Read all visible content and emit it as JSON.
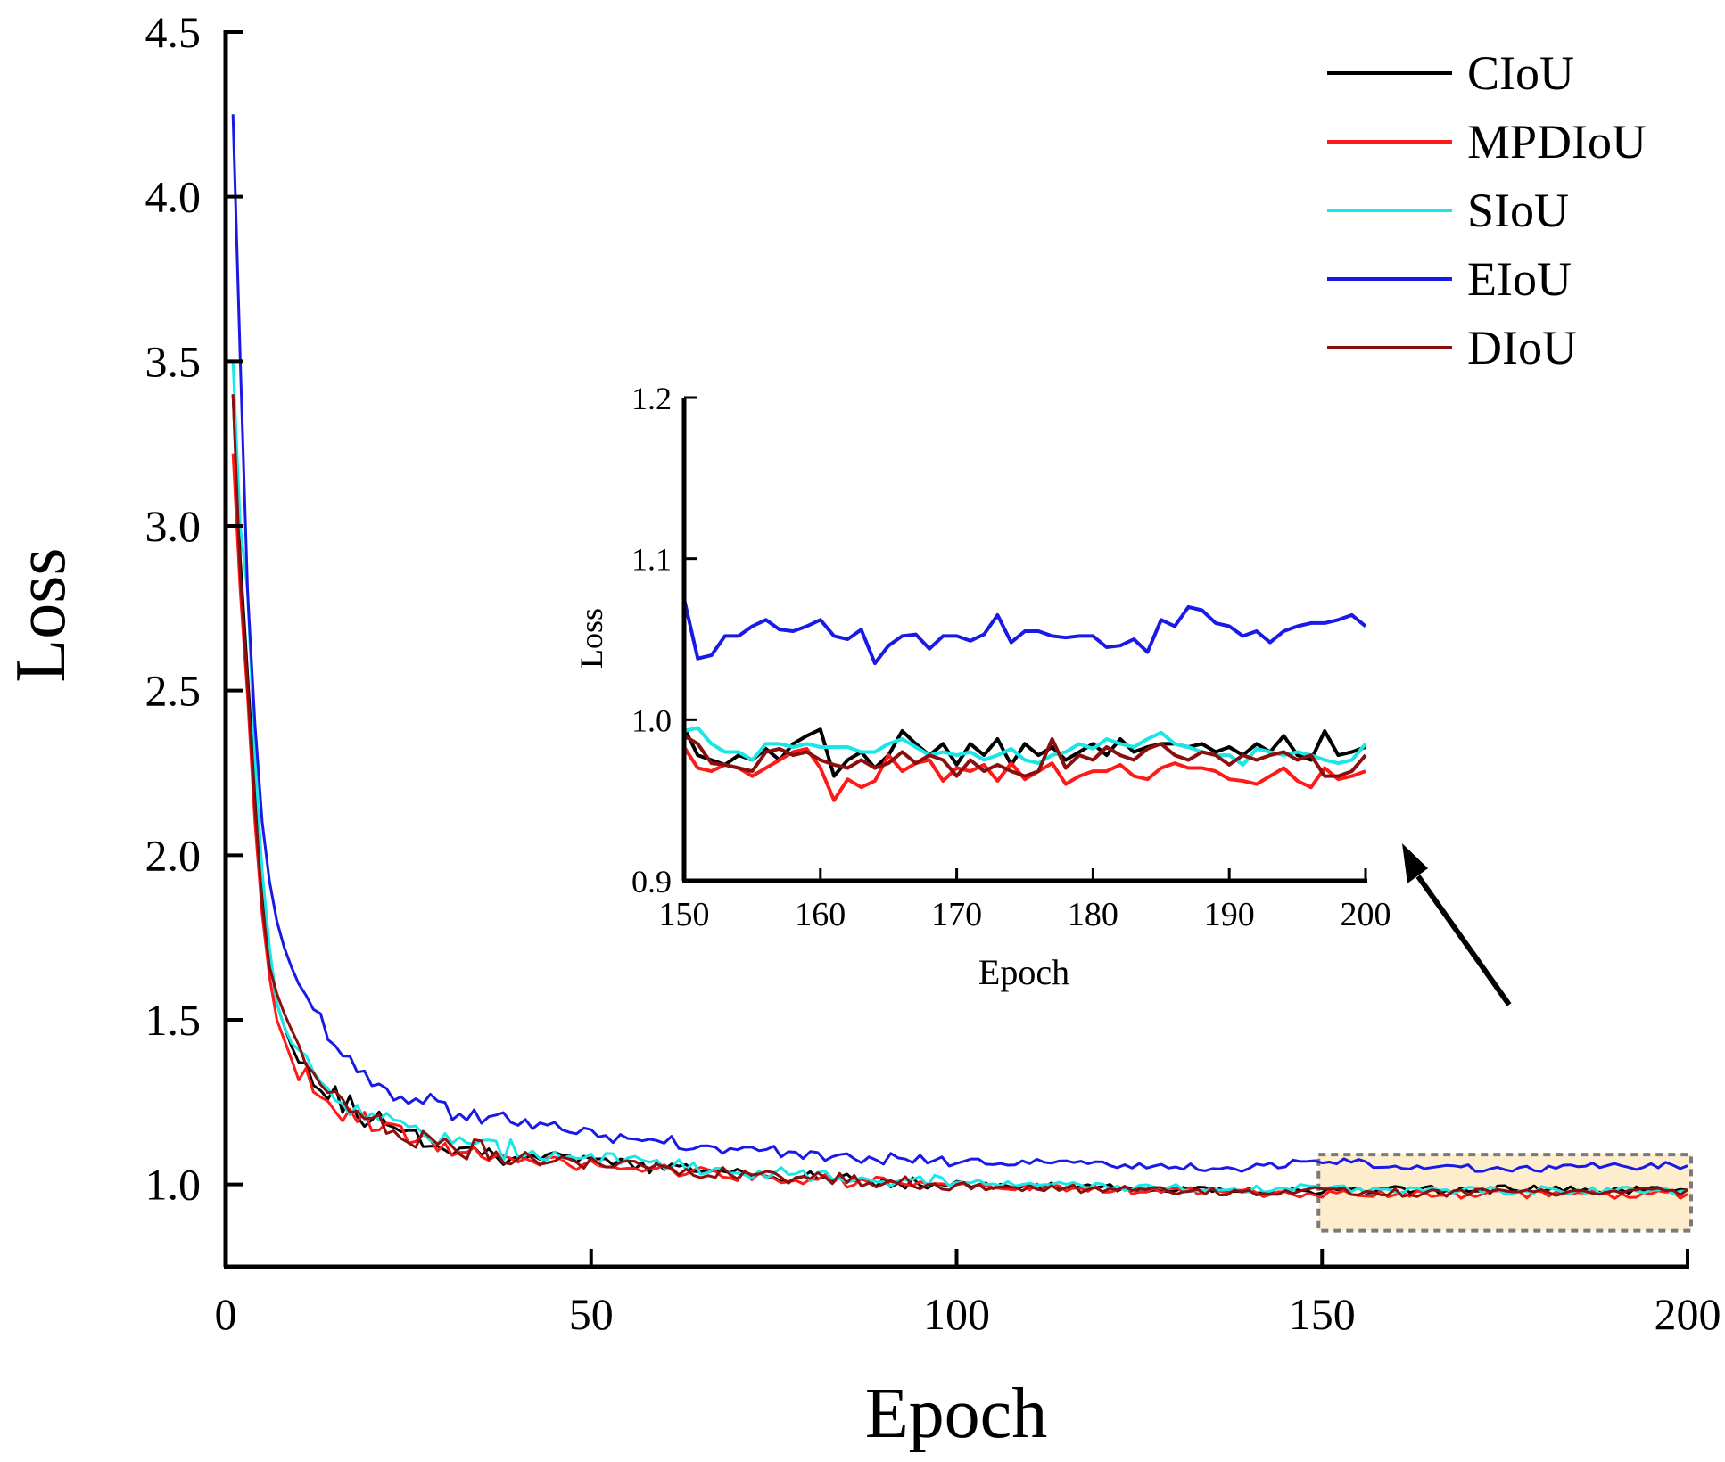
{
  "chart_data": [
    {
      "type": "line",
      "id": "main",
      "title": "",
      "xlabel": "Epoch",
      "ylabel": "Loss",
      "xlim": [
        0,
        200
      ],
      "ylim": [
        0.75,
        4.5
      ],
      "xticks": [
        "0",
        "50",
        "100",
        "150",
        "200"
      ],
      "yticks": [
        "1.0",
        "1.5",
        "2.0",
        "2.5",
        "3.0",
        "3.5",
        "4.0",
        "4.5"
      ],
      "grid": false,
      "legend_position": "top-right",
      "highlight_region": {
        "x": [
          150,
          200
        ],
        "y": [
          0.87,
          1.08
        ]
      },
      "series": [
        {
          "name": "CIoU",
          "color": "#000000",
          "x": [
            1,
            2,
            3,
            4,
            5,
            6,
            7,
            8,
            9,
            10,
            12,
            14,
            16,
            18,
            20,
            22,
            24,
            26,
            28,
            30,
            35,
            40,
            45,
            50,
            55,
            60,
            65,
            70,
            75,
            80,
            85,
            90,
            95,
            100,
            110,
            120,
            130,
            140,
            150,
            160,
            170,
            180,
            190,
            200
          ],
          "values": [
            3.4,
            2.9,
            2.55,
            2.2,
            1.9,
            1.7,
            1.55,
            1.48,
            1.42,
            1.38,
            1.33,
            1.29,
            1.25,
            1.22,
            1.2,
            1.18,
            1.16,
            1.15,
            1.13,
            1.12,
            1.1,
            1.09,
            1.08,
            1.07,
            1.06,
            1.05,
            1.04,
            1.035,
            1.03,
            1.02,
            1.015,
            1.01,
            1.005,
            1.0,
            0.995,
            0.99,
            0.985,
            0.983,
            0.98,
            0.983,
            0.985,
            0.985,
            0.98,
            0.985
          ]
        },
        {
          "name": "MPDIoU",
          "color": "#ff1a1a",
          "x": [
            1,
            2,
            3,
            4,
            5,
            6,
            7,
            8,
            9,
            10,
            12,
            14,
            16,
            18,
            20,
            22,
            24,
            26,
            28,
            30,
            35,
            40,
            45,
            50,
            55,
            60,
            65,
            70,
            75,
            80,
            85,
            90,
            95,
            100,
            110,
            120,
            130,
            140,
            150,
            160,
            170,
            180,
            190,
            200
          ],
          "values": [
            3.22,
            2.8,
            2.48,
            2.1,
            1.82,
            1.63,
            1.5,
            1.44,
            1.38,
            1.34,
            1.3,
            1.26,
            1.22,
            1.2,
            1.18,
            1.16,
            1.15,
            1.14,
            1.12,
            1.11,
            1.09,
            1.08,
            1.07,
            1.06,
            1.05,
            1.04,
            1.035,
            1.03,
            1.02,
            1.015,
            1.01,
            1.005,
            1.0,
            0.995,
            0.99,
            0.985,
            0.98,
            0.975,
            0.97,
            0.968,
            0.97,
            0.97,
            0.968,
            0.97
          ]
        },
        {
          "name": "SIoU",
          "color": "#19e6e6",
          "x": [
            1,
            2,
            3,
            4,
            5,
            6,
            7,
            8,
            9,
            10,
            12,
            14,
            16,
            18,
            20,
            22,
            24,
            26,
            28,
            30,
            35,
            40,
            45,
            50,
            55,
            60,
            65,
            70,
            75,
            80,
            85,
            90,
            95,
            100,
            110,
            120,
            130,
            140,
            150,
            160,
            170,
            180,
            190,
            200
          ],
          "values": [
            3.5,
            3.0,
            2.8,
            2.3,
            1.95,
            1.72,
            1.55,
            1.48,
            1.43,
            1.39,
            1.34,
            1.3,
            1.26,
            1.23,
            1.21,
            1.19,
            1.17,
            1.16,
            1.14,
            1.13,
            1.11,
            1.1,
            1.09,
            1.08,
            1.07,
            1.06,
            1.05,
            1.04,
            1.035,
            1.03,
            1.02,
            1.015,
            1.01,
            1.005,
            1.0,
            0.995,
            0.99,
            0.985,
            0.99,
            0.985,
            0.98,
            0.985,
            0.98,
            0.985
          ]
        },
        {
          "name": "EIoU",
          "color": "#1a1ae6",
          "x": [
            1,
            2,
            3,
            4,
            5,
            6,
            7,
            8,
            9,
            10,
            12,
            14,
            16,
            18,
            20,
            22,
            24,
            26,
            28,
            30,
            35,
            40,
            45,
            50,
            55,
            60,
            65,
            70,
            75,
            80,
            85,
            90,
            95,
            100,
            110,
            120,
            130,
            140,
            150,
            160,
            170,
            180,
            190,
            200
          ],
          "values": [
            4.25,
            3.5,
            2.8,
            2.4,
            2.1,
            1.92,
            1.8,
            1.72,
            1.66,
            1.6,
            1.52,
            1.46,
            1.41,
            1.37,
            1.33,
            1.3,
            1.28,
            1.26,
            1.24,
            1.22,
            1.2,
            1.18,
            1.17,
            1.15,
            1.14,
            1.13,
            1.12,
            1.11,
            1.1,
            1.09,
            1.085,
            1.08,
            1.075,
            1.07,
            1.065,
            1.06,
            1.055,
            1.05,
            1.07,
            1.06,
            1.05,
            1.05,
            1.055,
            1.06
          ]
        },
        {
          "name": "DIoU",
          "color": "#8b0f0f",
          "x": [
            1,
            2,
            3,
            4,
            5,
            6,
            7,
            8,
            9,
            10,
            12,
            14,
            16,
            18,
            20,
            22,
            24,
            26,
            28,
            30,
            35,
            40,
            45,
            50,
            55,
            60,
            65,
            70,
            75,
            80,
            85,
            90,
            95,
            100,
            110,
            120,
            130,
            140,
            150,
            160,
            170,
            180,
            190,
            200
          ],
          "values": [
            3.4,
            2.85,
            2.52,
            2.15,
            1.85,
            1.66,
            1.58,
            1.52,
            1.47,
            1.4,
            1.33,
            1.28,
            1.24,
            1.21,
            1.19,
            1.17,
            1.15,
            1.14,
            1.12,
            1.11,
            1.1,
            1.085,
            1.075,
            1.065,
            1.055,
            1.045,
            1.04,
            1.03,
            1.025,
            1.02,
            1.012,
            1.007,
            1.002,
            0.998,
            0.99,
            0.985,
            0.982,
            0.978,
            0.98,
            0.975,
            0.975,
            0.975,
            0.978,
            0.98
          ]
        }
      ]
    },
    {
      "type": "line",
      "id": "inset",
      "title": "",
      "xlabel": "Epoch",
      "ylabel": "Loss",
      "xlim": [
        150,
        200
      ],
      "ylim": [
        0.9,
        1.2
      ],
      "xticks": [
        "150",
        "160",
        "170",
        "180",
        "190",
        "200"
      ],
      "yticks": [
        "0.9",
        "1.0",
        "1.1",
        "1.2"
      ],
      "grid": false,
      "series": [
        {
          "name": "CIoU",
          "color": "#000000",
          "x": [
            150,
            151,
            152,
            153,
            154,
            155,
            156,
            157,
            158,
            159,
            160,
            161,
            162,
            163,
            164,
            165,
            166,
            167,
            168,
            169,
            170,
            171,
            172,
            173,
            174,
            175,
            176,
            177,
            178,
            179,
            180,
            181,
            182,
            183,
            184,
            185,
            186,
            187,
            188,
            189,
            190,
            191,
            192,
            193,
            194,
            195,
            196,
            197,
            198,
            199,
            200
          ],
          "values": [
            0.995,
            0.978,
            0.975,
            0.972,
            0.978,
            0.975,
            0.982,
            0.975,
            0.985,
            0.99,
            0.994,
            0.965,
            0.975,
            0.98,
            0.97,
            0.978,
            0.993,
            0.985,
            0.978,
            0.985,
            0.972,
            0.985,
            0.978,
            0.988,
            0.972,
            0.985,
            0.978,
            0.983,
            0.975,
            0.98,
            0.985,
            0.978,
            0.988,
            0.98,
            0.983,
            0.985,
            0.985,
            0.983,
            0.985,
            0.98,
            0.983,
            0.978,
            0.985,
            0.98,
            0.99,
            0.978,
            0.975,
            0.993,
            0.978,
            0.98,
            0.983
          ]
        },
        {
          "name": "MPDIoU",
          "color": "#ff1a1a",
          "x": [
            150,
            151,
            152,
            153,
            154,
            155,
            156,
            157,
            158,
            159,
            160,
            161,
            162,
            163,
            164,
            165,
            166,
            167,
            168,
            169,
            170,
            171,
            172,
            173,
            174,
            175,
            176,
            177,
            178,
            179,
            180,
            181,
            182,
            183,
            184,
            185,
            186,
            187,
            188,
            189,
            190,
            191,
            192,
            193,
            194,
            195,
            196,
            197,
            198,
            199,
            200
          ],
          "values": [
            0.983,
            0.97,
            0.968,
            0.972,
            0.97,
            0.965,
            0.97,
            0.975,
            0.98,
            0.982,
            0.97,
            0.95,
            0.963,
            0.958,
            0.962,
            0.978,
            0.968,
            0.973,
            0.975,
            0.962,
            0.97,
            0.968,
            0.972,
            0.962,
            0.973,
            0.963,
            0.968,
            0.973,
            0.96,
            0.965,
            0.968,
            0.968,
            0.972,
            0.965,
            0.963,
            0.97,
            0.973,
            0.97,
            0.97,
            0.968,
            0.963,
            0.962,
            0.96,
            0.965,
            0.97,
            0.962,
            0.958,
            0.97,
            0.963,
            0.965,
            0.968
          ]
        },
        {
          "name": "SIoU",
          "color": "#19e6e6",
          "x": [
            150,
            151,
            152,
            153,
            154,
            155,
            156,
            157,
            158,
            159,
            160,
            161,
            162,
            163,
            164,
            165,
            166,
            167,
            168,
            169,
            170,
            171,
            172,
            173,
            174,
            175,
            176,
            177,
            178,
            179,
            180,
            181,
            182,
            183,
            184,
            185,
            186,
            187,
            188,
            189,
            190,
            191,
            192,
            193,
            194,
            195,
            196,
            197,
            198,
            199,
            200
          ],
          "values": [
            0.993,
            0.995,
            0.985,
            0.98,
            0.98,
            0.975,
            0.985,
            0.985,
            0.983,
            0.985,
            0.983,
            0.983,
            0.983,
            0.98,
            0.98,
            0.985,
            0.988,
            0.983,
            0.978,
            0.98,
            0.978,
            0.98,
            0.975,
            0.978,
            0.982,
            0.975,
            0.973,
            0.978,
            0.98,
            0.985,
            0.982,
            0.988,
            0.985,
            0.983,
            0.988,
            0.992,
            0.985,
            0.983,
            0.98,
            0.978,
            0.978,
            0.972,
            0.982,
            0.98,
            0.978,
            0.98,
            0.978,
            0.975,
            0.973,
            0.975,
            0.985
          ]
        },
        {
          "name": "EIoU",
          "color": "#1a1ae6",
          "x": [
            150,
            151,
            152,
            153,
            154,
            155,
            156,
            157,
            158,
            159,
            160,
            161,
            162,
            163,
            164,
            165,
            166,
            167,
            168,
            169,
            170,
            171,
            172,
            173,
            174,
            175,
            176,
            177,
            178,
            179,
            180,
            181,
            182,
            183,
            184,
            185,
            186,
            187,
            188,
            189,
            190,
            191,
            192,
            193,
            194,
            195,
            196,
            197,
            198,
            199,
            200
          ],
          "values": [
            1.075,
            1.038,
            1.04,
            1.052,
            1.052,
            1.058,
            1.062,
            1.056,
            1.055,
            1.058,
            1.062,
            1.052,
            1.05,
            1.056,
            1.035,
            1.046,
            1.052,
            1.053,
            1.044,
            1.052,
            1.052,
            1.049,
            1.053,
            1.065,
            1.048,
            1.055,
            1.055,
            1.052,
            1.051,
            1.052,
            1.052,
            1.045,
            1.046,
            1.05,
            1.042,
            1.062,
            1.058,
            1.07,
            1.068,
            1.06,
            1.058,
            1.052,
            1.055,
            1.048,
            1.055,
            1.058,
            1.06,
            1.06,
            1.062,
            1.065,
            1.058
          ]
        },
        {
          "name": "DIoU",
          "color": "#8b0f0f",
          "x": [
            150,
            151,
            152,
            153,
            154,
            155,
            156,
            157,
            158,
            159,
            160,
            161,
            162,
            163,
            164,
            165,
            166,
            167,
            168,
            169,
            170,
            171,
            172,
            173,
            174,
            175,
            176,
            177,
            178,
            179,
            180,
            181,
            182,
            183,
            184,
            185,
            186,
            187,
            188,
            189,
            190,
            191,
            192,
            193,
            194,
            195,
            196,
            197,
            198,
            199,
            200
          ],
          "values": [
            0.99,
            0.985,
            0.973,
            0.972,
            0.97,
            0.968,
            0.98,
            0.982,
            0.978,
            0.98,
            0.975,
            0.972,
            0.97,
            0.975,
            0.97,
            0.973,
            0.98,
            0.973,
            0.978,
            0.975,
            0.965,
            0.975,
            0.968,
            0.972,
            0.968,
            0.965,
            0.968,
            0.988,
            0.97,
            0.978,
            0.975,
            0.983,
            0.978,
            0.975,
            0.982,
            0.985,
            0.978,
            0.975,
            0.98,
            0.978,
            0.972,
            0.978,
            0.975,
            0.978,
            0.98,
            0.975,
            0.978,
            0.965,
            0.965,
            0.968,
            0.978
          ]
        }
      ]
    }
  ]
}
